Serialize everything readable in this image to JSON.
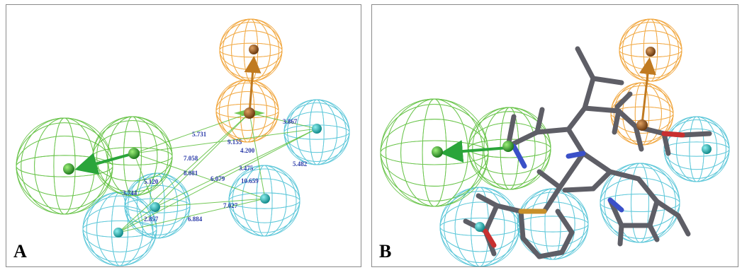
{
  "panels": [
    {
      "id": "A",
      "label": "A"
    },
    {
      "id": "B",
      "label": "B"
    }
  ],
  "distances": [
    "5.731",
    "9.155",
    "7.058",
    "4.200",
    "3.867",
    "3.475",
    "8.081",
    "6.079",
    "10.659",
    "5.482",
    "5.120",
    "3.744",
    "7.027",
    "2.857",
    "6.884"
  ],
  "colors": {
    "hydrophobic": "#5cbf3a",
    "aromatic": "#4fc3d6",
    "acceptor": "#f0a030",
    "bond": "#5e5e66",
    "sulfur": "#c8902a",
    "nitrogen": "#3a50c8",
    "oxygen": "#c83030",
    "distance_text": "#2a3aa8"
  },
  "icons": {
    "hydrophobic_center": "green-sphere-icon",
    "aromatic_center": "cyan-sphere-icon",
    "acceptor_center": "orange-sphere-icon"
  }
}
